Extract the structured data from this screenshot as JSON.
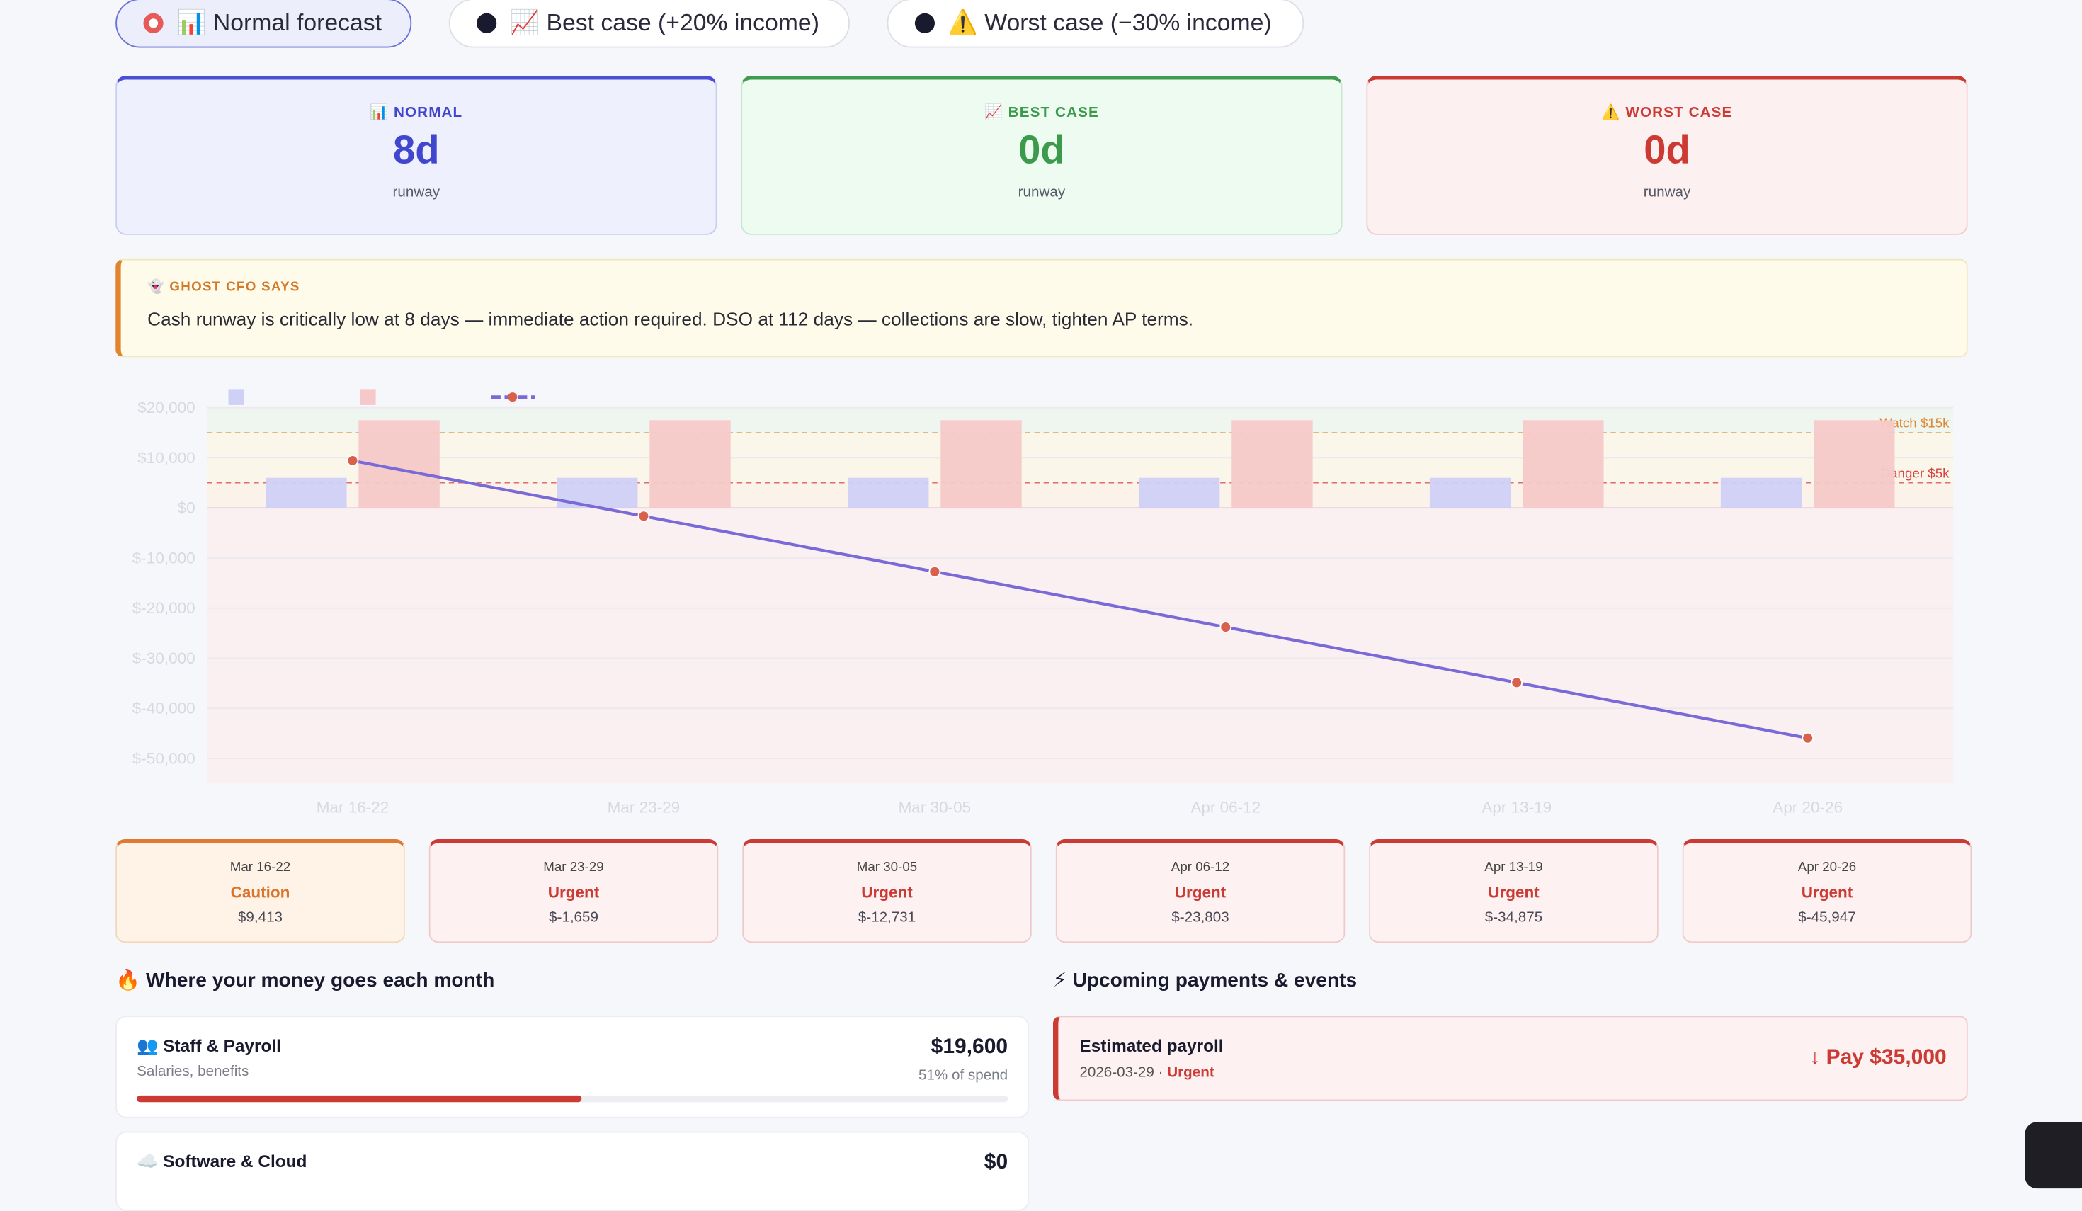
{
  "tabs": [
    {
      "icon": "📊",
      "label": "Normal forecast",
      "active": true
    },
    {
      "icon": "📈",
      "label": "Best case (+20% income)",
      "active": false
    },
    {
      "icon": "⚠️",
      "label": "Worst case (−30% income)",
      "active": false
    }
  ],
  "runway_cards": [
    {
      "icon": "📊",
      "label": "NORMAL",
      "value": "8d",
      "sub": "runway"
    },
    {
      "icon": "📈",
      "label": "BEST CASE",
      "value": "0d",
      "sub": "runway"
    },
    {
      "icon": "⚠️",
      "label": "WORST CASE",
      "value": "0d",
      "sub": "runway"
    }
  ],
  "cfo": {
    "icon": "👻",
    "heading": "GHOST CFO SAYS",
    "message": "Cash runway is critically low at 8 days — immediate action required. DSO at 112 days — collections are slow, tighten AP terms."
  },
  "chart_data": {
    "type": "bar",
    "categories": [
      "Mar 16-22",
      "Mar 23-29",
      "Mar 30-05",
      "Apr 06-12",
      "Apr 13-19",
      "Apr 20-26"
    ],
    "y_ticks": [
      "$20,000",
      "$10,000",
      "$0",
      "$-10,000",
      "$-20,000",
      "$-30,000",
      "$-40,000",
      "$-50,000"
    ],
    "ylim": [
      -55000,
      20000
    ],
    "series": [
      {
        "kind": "bar",
        "color": "#cfd0f5",
        "values": [
          6000,
          6000,
          6000,
          6000,
          6000,
          6000
        ]
      },
      {
        "kind": "bar",
        "color": "#f5c9c9",
        "values": [
          17500,
          17500,
          17500,
          17500,
          17500,
          17500
        ]
      },
      {
        "kind": "line",
        "color": "#7a6ad8",
        "point_color": "#d9604a",
        "values": [
          9413,
          -1659,
          -12731,
          -23803,
          -34875,
          -45947
        ]
      }
    ],
    "thresholds": [
      {
        "label": "Watch $15k",
        "value": 15000,
        "color": "#e0842e"
      },
      {
        "label": "Danger $5k",
        "value": 5000,
        "color": "#d94040"
      }
    ]
  },
  "weeks": [
    {
      "date": "Mar 16-22",
      "status": "Caution",
      "value": "$9,413",
      "level": "caution"
    },
    {
      "date": "Mar 23-29",
      "status": "Urgent",
      "value": "$-1,659",
      "level": "urgent"
    },
    {
      "date": "Mar 30-05",
      "status": "Urgent",
      "value": "$-12,731",
      "level": "urgent"
    },
    {
      "date": "Apr 06-12",
      "status": "Urgent",
      "value": "$-23,803",
      "level": "urgent"
    },
    {
      "date": "Apr 13-19",
      "status": "Urgent",
      "value": "$-34,875",
      "level": "urgent"
    },
    {
      "date": "Apr 20-26",
      "status": "Urgent",
      "value": "$-45,947",
      "level": "urgent"
    }
  ],
  "spend": {
    "icon": "🔥",
    "title": "Where your money goes each month",
    "items": [
      {
        "icon": "👥",
        "name": "Staff & Payroll",
        "desc": "Salaries, benefits",
        "amount": "$19,600",
        "pct": "51% of spend",
        "share": 0.51
      },
      {
        "icon": "☁️",
        "name": "Software & Cloud",
        "desc": "",
        "amount": "$0",
        "pct": "",
        "share": 0
      }
    ]
  },
  "events": {
    "icon": "⚡",
    "title": "Upcoming payments & events",
    "items": [
      {
        "name": "Estimated payroll",
        "date": "2026-03-29",
        "sep": " · ",
        "status": "Urgent",
        "amount": "↓ Pay $35,000"
      }
    ]
  }
}
